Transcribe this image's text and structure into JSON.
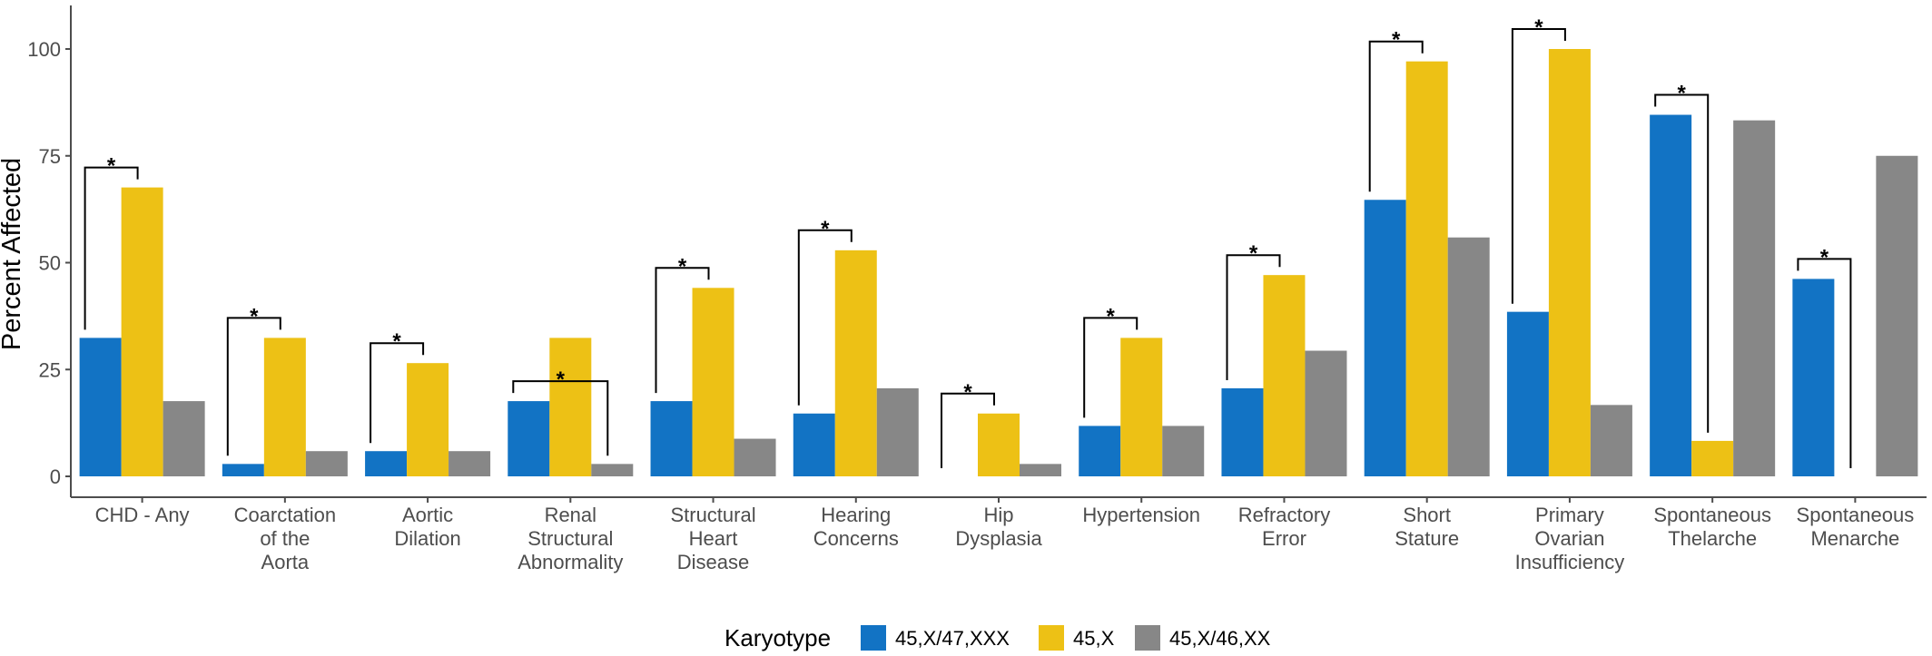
{
  "chart_data": {
    "type": "bar",
    "title": "",
    "xlabel": "",
    "ylabel": "Percent Affected",
    "ylim": [
      0,
      110
    ],
    "yticks": [
      "0",
      "25",
      "50",
      "75",
      "100"
    ],
    "grid": false,
    "legend_title": "Karyotype",
    "legend_position": "bottom",
    "categories": [
      [
        "CHD - Any"
      ],
      [
        "Coarctation",
        "of the",
        "Aorta"
      ],
      [
        "Aortic",
        "Dilation"
      ],
      [
        "Renal",
        "Structural",
        "Abnormality"
      ],
      [
        "Structural",
        "Heart",
        "Disease"
      ],
      [
        "Hearing",
        "Concerns"
      ],
      [
        "Hip",
        "Dysplasia"
      ],
      [
        "Hypertension"
      ],
      [
        "Refractory",
        "Error"
      ],
      [
        "Short",
        "Stature"
      ],
      [
        "Primary",
        "Ovarian",
        "Insufficiency"
      ],
      [
        "Spontaneous",
        "Thelarche"
      ],
      [
        "Spontaneous",
        "Menarche"
      ]
    ],
    "series": [
      {
        "name": "45,X/47,XXX",
        "color": "#1273C4",
        "values": [
          32.4,
          2.9,
          5.9,
          17.6,
          17.6,
          14.7,
          0,
          11.8,
          20.6,
          64.7,
          38.5,
          84.6,
          46.2
        ]
      },
      {
        "name": "45,X",
        "color": "#EDC115",
        "values": [
          67.6,
          32.4,
          26.5,
          32.4,
          44.1,
          52.9,
          14.7,
          32.4,
          47.1,
          97.1,
          100,
          8.3,
          0
        ]
      },
      {
        "name": "45,X/46,XX",
        "color": "#878787",
        "values": [
          17.6,
          5.9,
          5.9,
          2.9,
          8.8,
          20.6,
          2.9,
          11.8,
          29.4,
          55.9,
          16.7,
          83.3,
          75
        ]
      }
    ],
    "significance": [
      {
        "category": 0,
        "from": 0,
        "to": 1,
        "label": "*"
      },
      {
        "category": 1,
        "from": 0,
        "to": 1,
        "label": "*"
      },
      {
        "category": 2,
        "from": 0,
        "to": 1,
        "label": "*"
      },
      {
        "category": 3,
        "from": 0,
        "to": 2,
        "label": "*"
      },
      {
        "category": 4,
        "from": 0,
        "to": 1,
        "label": "*"
      },
      {
        "category": 5,
        "from": 0,
        "to": 1,
        "label": "*"
      },
      {
        "category": 6,
        "from": 0,
        "to": 1,
        "label": "*"
      },
      {
        "category": 7,
        "from": 0,
        "to": 1,
        "label": "*"
      },
      {
        "category": 8,
        "from": 0,
        "to": 1,
        "label": "*"
      },
      {
        "category": 9,
        "from": 0,
        "to": 1,
        "label": "*"
      },
      {
        "category": 10,
        "from": 0,
        "to": 1,
        "label": "*"
      },
      {
        "category": 11,
        "from": 0,
        "to": 1,
        "label": "*"
      },
      {
        "category": 12,
        "from": 0,
        "to": 1,
        "label": "*"
      }
    ]
  }
}
